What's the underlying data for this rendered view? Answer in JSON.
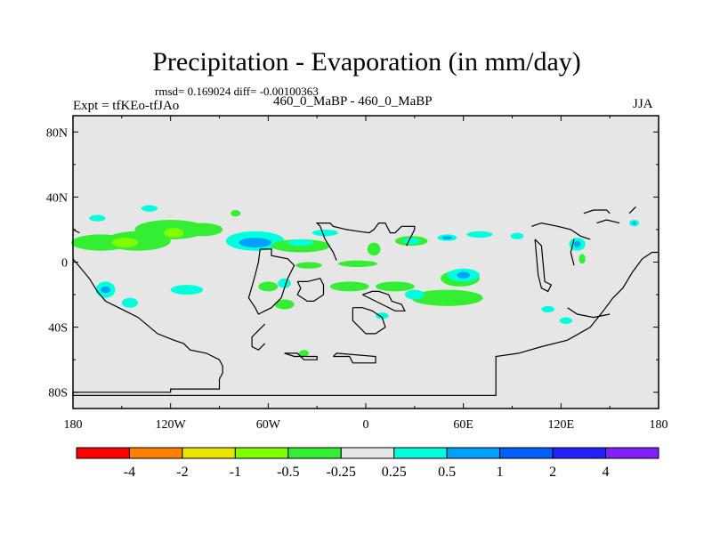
{
  "chart_data": {
    "type": "heatmap",
    "title": "Precipitation - Evaporation (in mm/day)",
    "stats_line": "rmsd= 0.169024 diff= -0.00100363",
    "left_label": "Expt = tfKEo-tfJAo",
    "center_label": "460_0_MaBP - 460_0_MaBP",
    "right_label": "JJA",
    "x_range": [
      -180,
      180
    ],
    "y_range": [
      -90,
      90
    ],
    "x_ticks": [
      {
        "value": -180,
        "label": "180"
      },
      {
        "value": -120,
        "label": "120W"
      },
      {
        "value": -60,
        "label": "60W"
      },
      {
        "value": 0,
        "label": "0"
      },
      {
        "value": 60,
        "label": "60E"
      },
      {
        "value": 120,
        "label": "120E"
      },
      {
        "value": 180,
        "label": "180"
      }
    ],
    "y_ticks": [
      {
        "value": 80,
        "label": "80N"
      },
      {
        "value": 40,
        "label": "40N"
      },
      {
        "value": 0,
        "label": "0"
      },
      {
        "value": -40,
        "label": "40S"
      },
      {
        "value": -80,
        "label": "80S"
      }
    ],
    "background_color": "#e6e6e6",
    "colorbar": {
      "boundaries": [
        "-4",
        "-2",
        "-1",
        "-0.5",
        "-0.25",
        "0.25",
        "0.5",
        "1",
        "2",
        "4"
      ],
      "colors": [
        "#ff0000",
        "#ff8000",
        "#e6e600",
        "#80ff00",
        "#33ee33",
        "#e6e6e6",
        "#00ffdd",
        "#00a0ff",
        "#0060ff",
        "#2222ff",
        "#8020ff"
      ]
    },
    "regions": [
      {
        "lon": -163,
        "lat": 12,
        "rx": 18,
        "ry": 5,
        "color": "#33ee33"
      },
      {
        "lon": -140,
        "lat": 13,
        "rx": 20,
        "ry": 6,
        "color": "#33ee33"
      },
      {
        "lon": -120,
        "lat": 20,
        "rx": 22,
        "ry": 6,
        "color": "#33ee33"
      },
      {
        "lon": -100,
        "lat": 20,
        "rx": 12,
        "ry": 4,
        "color": "#33ee33"
      },
      {
        "lon": -148,
        "lat": 12,
        "rx": 8,
        "ry": 3,
        "color": "#80ff00"
      },
      {
        "lon": -118,
        "lat": 18,
        "rx": 6,
        "ry": 3,
        "color": "#80ff00"
      },
      {
        "lon": -68,
        "lat": 13,
        "rx": 18,
        "ry": 6,
        "color": "#00ffdd"
      },
      {
        "lon": -68,
        "lat": 12,
        "rx": 10,
        "ry": 3,
        "color": "#00a0ff"
      },
      {
        "lon": -40,
        "lat": 10,
        "rx": 18,
        "ry": 4,
        "color": "#33ee33"
      },
      {
        "lon": -40,
        "lat": 12,
        "rx": 8,
        "ry": 2,
        "color": "#00ffdd"
      },
      {
        "lon": -25,
        "lat": 18,
        "rx": 8,
        "ry": 2,
        "color": "#00ffdd"
      },
      {
        "lon": -165,
        "lat": 27,
        "rx": 5,
        "ry": 2,
        "color": "#00ffdd"
      },
      {
        "lon": -133,
        "lat": 33,
        "rx": 5,
        "ry": 2,
        "color": "#00ffdd"
      },
      {
        "lon": -80,
        "lat": 30,
        "rx": 3,
        "ry": 2,
        "color": "#33ee33"
      },
      {
        "lon": -160,
        "lat": -17,
        "rx": 6,
        "ry": 5,
        "color": "#00ffdd"
      },
      {
        "lon": -160,
        "lat": -17,
        "rx": 3,
        "ry": 2,
        "color": "#00a0ff"
      },
      {
        "lon": -145,
        "lat": -25,
        "rx": 5,
        "ry": 3,
        "color": "#00ffdd"
      },
      {
        "lon": -110,
        "lat": -17,
        "rx": 10,
        "ry": 3,
        "color": "#00ffdd"
      },
      {
        "lon": -60,
        "lat": -15,
        "rx": 6,
        "ry": 3,
        "color": "#33ee33"
      },
      {
        "lon": -50,
        "lat": -26,
        "rx": 6,
        "ry": 3,
        "color": "#33ee33"
      },
      {
        "lon": -50,
        "lat": -13,
        "rx": 4,
        "ry": 3,
        "color": "#00ffdd"
      },
      {
        "lon": -35,
        "lat": -2,
        "rx": 8,
        "ry": 2,
        "color": "#33ee33"
      },
      {
        "lon": -5,
        "lat": -1,
        "rx": 12,
        "ry": 2,
        "color": "#33ee33"
      },
      {
        "lon": -10,
        "lat": -15,
        "rx": 12,
        "ry": 3,
        "color": "#33ee33"
      },
      {
        "lon": 18,
        "lat": -15,
        "rx": 12,
        "ry": 3,
        "color": "#33ee33"
      },
      {
        "lon": 50,
        "lat": -22,
        "rx": 22,
        "ry": 5,
        "color": "#33ee33"
      },
      {
        "lon": 58,
        "lat": -10,
        "rx": 12,
        "ry": 5,
        "color": "#33ee33"
      },
      {
        "lon": 30,
        "lat": -20,
        "rx": 6,
        "ry": 3,
        "color": "#00ffdd"
      },
      {
        "lon": 10,
        "lat": -33,
        "rx": 4,
        "ry": 2,
        "color": "#00ffdd"
      },
      {
        "lon": 60,
        "lat": -8,
        "rx": 10,
        "ry": 4,
        "color": "#00ffdd"
      },
      {
        "lon": 60,
        "lat": -8,
        "rx": 4,
        "ry": 2,
        "color": "#00a0ff"
      },
      {
        "lon": 5,
        "lat": 8,
        "rx": 4,
        "ry": 4,
        "color": "#33ee33"
      },
      {
        "lon": 28,
        "lat": 13,
        "rx": 10,
        "ry": 3,
        "color": "#33ee33"
      },
      {
        "lon": 28,
        "lat": 13,
        "rx": 5,
        "ry": 2,
        "color": "#00ffdd"
      },
      {
        "lon": 50,
        "lat": 15,
        "rx": 6,
        "ry": 2,
        "color": "#00ffdd"
      },
      {
        "lon": 50,
        "lat": 15,
        "rx": 3,
        "ry": 1,
        "color": "#00a0ff"
      },
      {
        "lon": 70,
        "lat": 17,
        "rx": 8,
        "ry": 2,
        "color": "#00ffdd"
      },
      {
        "lon": 93,
        "lat": 16,
        "rx": 4,
        "ry": 2,
        "color": "#00ffdd"
      },
      {
        "lon": 130,
        "lat": 11,
        "rx": 5,
        "ry": 4,
        "color": "#00ffdd"
      },
      {
        "lon": 130,
        "lat": 11,
        "rx": 2,
        "ry": 2,
        "color": "#00a0ff"
      },
      {
        "lon": 133,
        "lat": 2,
        "rx": 2,
        "ry": 3,
        "color": "#33ee33"
      },
      {
        "lon": 165,
        "lat": 24,
        "rx": 3,
        "ry": 2,
        "color": "#00ffdd"
      },
      {
        "lon": 165,
        "lat": 24,
        "rx": 1,
        "ry": 1,
        "color": "#00a0ff"
      },
      {
        "lon": 112,
        "lat": -29,
        "rx": 4,
        "ry": 2,
        "color": "#00ffdd"
      },
      {
        "lon": 123,
        "lat": -36,
        "rx": 4,
        "ry": 2,
        "color": "#00ffdd"
      },
      {
        "lon": -38,
        "lat": -56,
        "rx": 3,
        "ry": 2,
        "color": "#33ee33"
      }
    ],
    "contours": [
      [
        [
          -180,
          -80
        ],
        [
          -120,
          -80
        ],
        [
          -120,
          -78
        ],
        [
          -90,
          -78
        ],
        [
          -90,
          -72
        ],
        [
          -88,
          -68
        ],
        [
          -88,
          -64
        ],
        [
          -90,
          -60
        ],
        [
          -98,
          -56
        ],
        [
          -108,
          -54
        ],
        [
          -112,
          -50
        ],
        [
          -118,
          -48
        ],
        [
          -128,
          -44
        ],
        [
          -140,
          -34
        ],
        [
          -148,
          -30
        ],
        [
          -152,
          -28
        ],
        [
          -160,
          -24
        ],
        [
          -165,
          -18
        ],
        [
          -170,
          -10
        ],
        [
          -175,
          -4
        ],
        [
          -180,
          2
        ]
      ],
      [
        [
          -180,
          -80
        ],
        [
          -180,
          -82
        ],
        [
          -100,
          -82
        ],
        [
          -20,
          -82
        ],
        [
          80,
          -82
        ],
        [
          80,
          -58
        ],
        [
          94,
          -56
        ],
        [
          108,
          -52
        ],
        [
          124,
          -48
        ],
        [
          138,
          -40
        ],
        [
          146,
          -30
        ],
        [
          152,
          -22
        ],
        [
          158,
          -16
        ],
        [
          164,
          -6
        ],
        [
          170,
          2
        ],
        [
          176,
          6
        ],
        [
          180,
          6
        ]
      ],
      [
        [
          -176,
          18
        ],
        [
          -180,
          20
        ]
      ],
      [
        [
          -18,
          1
        ],
        [
          -20,
          6
        ],
        [
          -25,
          14
        ],
        [
          -28,
          22
        ],
        [
          -30,
          24
        ],
        [
          -22,
          24
        ],
        [
          -20,
          22
        ],
        [
          -12,
          20
        ],
        [
          -5,
          19
        ],
        [
          2,
          18
        ],
        [
          5,
          20
        ],
        [
          8,
          24
        ],
        [
          12,
          24
        ],
        [
          15,
          18
        ],
        [
          18,
          18
        ],
        [
          22,
          22
        ],
        [
          30,
          22
        ],
        [
          30,
          20
        ],
        [
          25,
          10
        ]
      ],
      [
        [
          -65,
          8
        ],
        [
          -58,
          8
        ],
        [
          -58,
          4
        ],
        [
          -48,
          2
        ],
        [
          -44,
          -2
        ],
        [
          -48,
          -10
        ],
        [
          -50,
          -16
        ],
        [
          -52,
          -22
        ],
        [
          -58,
          -28
        ],
        [
          -62,
          -30
        ],
        [
          -66,
          -32
        ],
        [
          -68,
          -28
        ],
        [
          -72,
          -22
        ],
        [
          -70,
          -15
        ],
        [
          -68,
          -8
        ],
        [
          -66,
          0
        ],
        [
          -65,
          8
        ]
      ],
      [
        [
          -42,
          -12
        ],
        [
          -36,
          -12
        ],
        [
          -28,
          -10
        ],
        [
          -26,
          -14
        ],
        [
          -26,
          -20
        ],
        [
          -32,
          -24
        ],
        [
          -36,
          -24
        ],
        [
          -42,
          -20
        ],
        [
          -40,
          -16
        ],
        [
          -42,
          -12
        ]
      ],
      [
        [
          -2,
          -20
        ],
        [
          6,
          -24
        ],
        [
          10,
          -26
        ],
        [
          18,
          -30
        ],
        [
          24,
          -30
        ],
        [
          22,
          -26
        ],
        [
          16,
          -24
        ],
        [
          14,
          -20
        ],
        [
          8,
          -18
        ],
        [
          4,
          -18
        ],
        [
          -2,
          -20
        ]
      ],
      [
        [
          -8,
          -28
        ],
        [
          -8,
          -36
        ],
        [
          -4,
          -40
        ],
        [
          0,
          -44
        ],
        [
          6,
          -44
        ],
        [
          12,
          -40
        ],
        [
          10,
          -34
        ],
        [
          4,
          -30
        ],
        [
          -2,
          -28
        ],
        [
          -8,
          -28
        ]
      ],
      [
        [
          -50,
          -56
        ],
        [
          -42,
          -56
        ],
        [
          -38,
          -60
        ],
        [
          -30,
          -60
        ],
        [
          -30,
          -58
        ],
        [
          -44,
          -58
        ],
        [
          -50,
          -56
        ]
      ],
      [
        [
          -20,
          -58
        ],
        [
          -10,
          -58
        ],
        [
          -8,
          -62
        ],
        [
          6,
          -62
        ],
        [
          6,
          -58
        ],
        [
          -18,
          -56
        ],
        [
          -20,
          -58
        ]
      ],
      [
        [
          -62,
          -38
        ],
        [
          -66,
          -42
        ],
        [
          -70,
          -46
        ],
        [
          -70,
          -52
        ],
        [
          -66,
          -54
        ],
        [
          -62,
          -50
        ]
      ],
      [
        [
          104,
          14
        ],
        [
          108,
          10
        ],
        [
          110,
          -12
        ],
        [
          114,
          -14
        ],
        [
          112,
          -18
        ],
        [
          108,
          -16
        ],
        [
          106,
          -8
        ],
        [
          104,
          14
        ]
      ],
      [
        [
          102,
          22
        ],
        [
          108,
          24
        ],
        [
          118,
          22
        ],
        [
          126,
          20
        ],
        [
          132,
          16
        ],
        [
          138,
          14
        ]
      ],
      [
        [
          134,
          30
        ],
        [
          140,
          32
        ],
        [
          148,
          32
        ],
        [
          150,
          30
        ]
      ],
      [
        [
          162,
          30
        ],
        [
          166,
          34
        ]
      ],
      [
        [
          128,
          14
        ],
        [
          126,
          6
        ],
        [
          128,
          -2
        ]
      ],
      [
        [
          142,
          24
        ],
        [
          148,
          26
        ],
        [
          156,
          24
        ]
      ],
      [
        [
          124,
          -28
        ],
        [
          130,
          -32
        ],
        [
          140,
          -34
        ],
        [
          150,
          -32
        ]
      ]
    ]
  }
}
